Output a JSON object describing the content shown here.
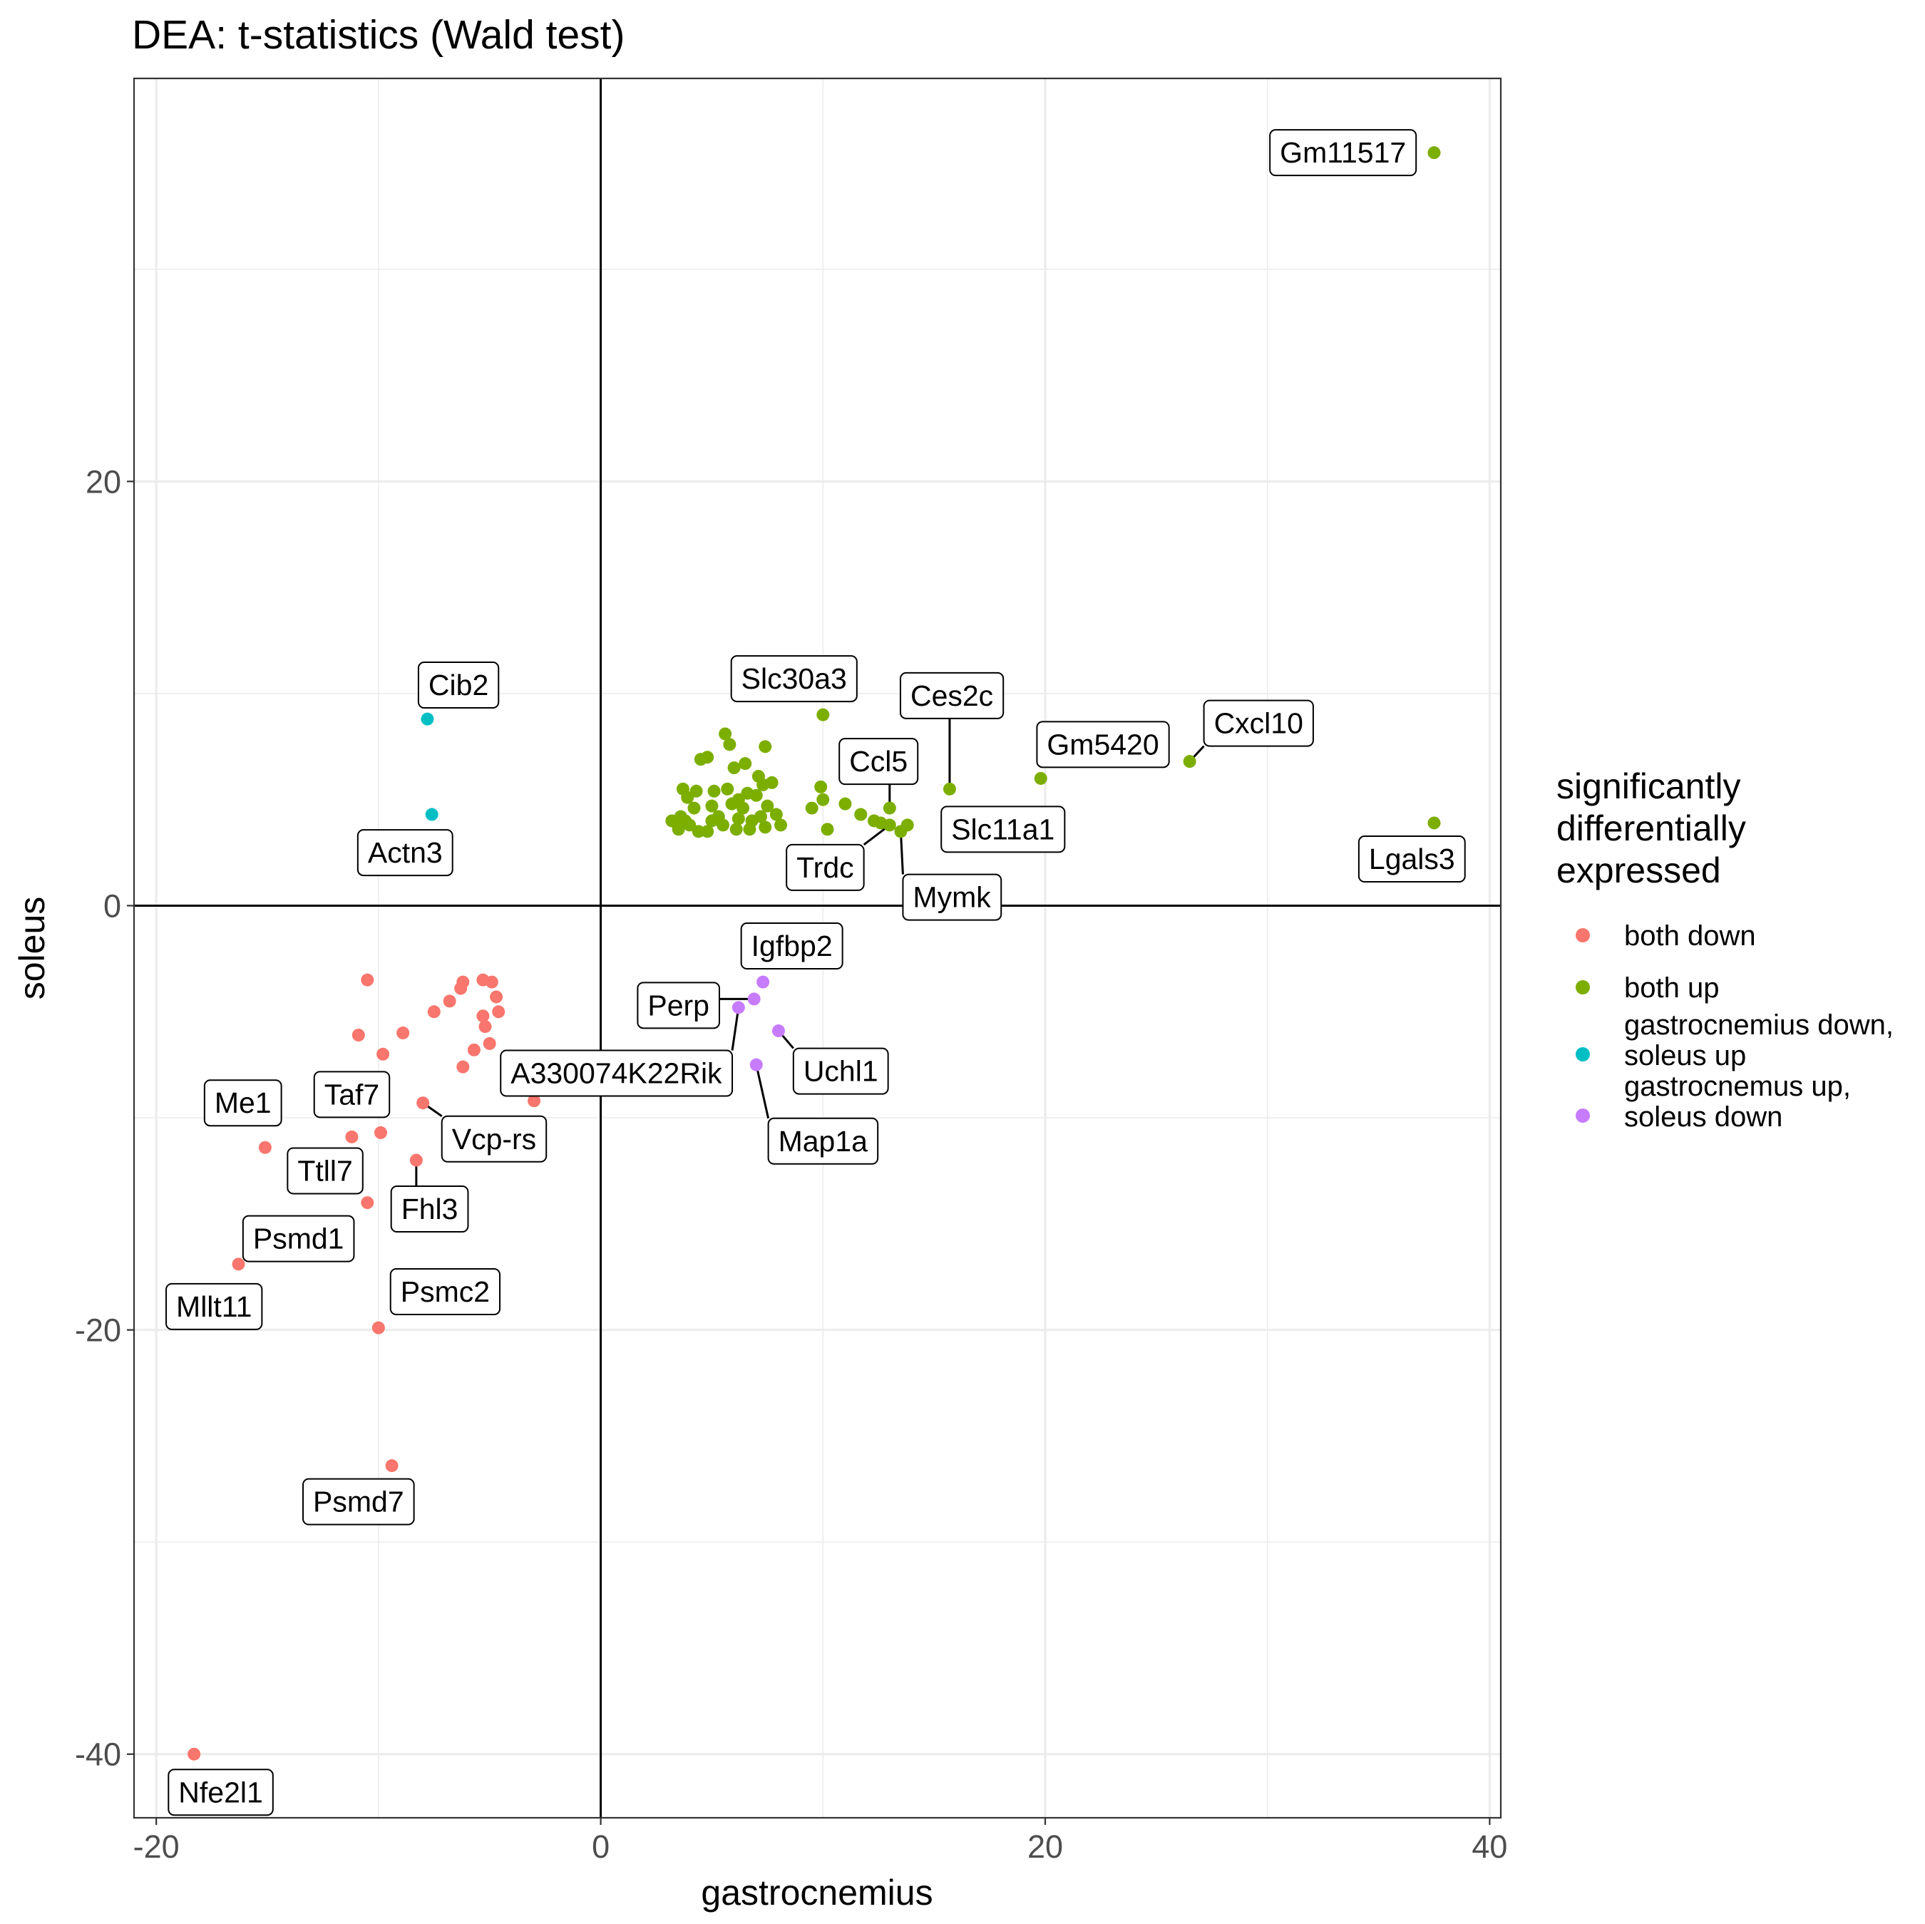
{
  "chart_data": {
    "type": "scatter",
    "title": "DEA: t-statistics (Wald test)",
    "xlabel": "gastrocnemius",
    "ylabel": "soleus",
    "xlim": [
      -21,
      40.5
    ],
    "ylim": [
      -43,
      39
    ],
    "xticks": [
      -20,
      0,
      20,
      40
    ],
    "yticks": [
      -40,
      -20,
      0,
      20
    ],
    "grid": true,
    "reference_lines": {
      "x": 0,
      "y": 0
    },
    "legend": {
      "title_lines": [
        "significantly",
        "differentially",
        "expressed"
      ],
      "placement": "right",
      "entries": [
        {
          "key": "both_down",
          "lines": [
            "both down"
          ]
        },
        {
          "key": "both_up",
          "lines": [
            "both up"
          ]
        },
        {
          "key": "gastro_down_soleus_up",
          "lines": [
            "gastrocnemius down,",
            " soleus up"
          ]
        },
        {
          "key": "gastro_up_soleus_down",
          "lines": [
            "gastrocnemus up,",
            " soleus down"
          ]
        }
      ]
    },
    "colors": {
      "both_down": "#F8766D",
      "both_up": "#7CAE00",
      "gastro_down_soleus_up": "#00BFC4",
      "gastro_up_soleus_down": "#C77CFF"
    },
    "series": [
      {
        "key": "both_down",
        "points": [
          [
            -18.3,
            -40.0
          ],
          [
            -16.3,
            -16.9
          ],
          [
            -15.1,
            -11.4
          ],
          [
            -11.2,
            -10.9
          ],
          [
            -10.9,
            -6.1
          ],
          [
            -10.5,
            -3.5
          ],
          [
            -10.0,
            -19.9
          ],
          [
            -9.9,
            -10.7
          ],
          [
            -9.8,
            -7.0
          ],
          [
            -9.4,
            -26.4
          ],
          [
            -8.9,
            -6.0
          ],
          [
            -8.3,
            -12.0
          ],
          [
            -8.0,
            -9.3
          ],
          [
            -7.5,
            -5.0
          ],
          [
            -6.8,
            -4.5
          ],
          [
            -6.2,
            -3.6
          ],
          [
            -6.3,
            -3.9
          ],
          [
            -6.2,
            -7.6
          ],
          [
            -5.7,
            -6.8
          ],
          [
            -5.3,
            -3.5
          ],
          [
            -5.3,
            -5.2
          ],
          [
            -5.2,
            -5.7
          ],
          [
            -5.0,
            -6.5
          ],
          [
            -4.9,
            -3.6
          ],
          [
            -4.7,
            -4.3
          ],
          [
            -4.6,
            -5.0
          ],
          [
            -3.0,
            -9.2
          ],
          [
            -10.5,
            -14.0
          ]
        ]
      },
      {
        "key": "both_up",
        "points": [
          [
            37.5,
            35.5
          ],
          [
            37.5,
            3.9
          ],
          [
            26.5,
            6.8
          ],
          [
            19.8,
            6.0
          ],
          [
            15.7,
            5.5
          ],
          [
            13.0,
            4.6
          ],
          [
            13.8,
            3.8
          ],
          [
            13.0,
            3.8
          ],
          [
            13.5,
            3.5
          ],
          [
            12.6,
            3.9
          ],
          [
            12.3,
            4.0
          ],
          [
            11.7,
            4.3
          ],
          [
            11.0,
            4.8
          ],
          [
            10.2,
            3.6
          ],
          [
            10.0,
            5.0
          ],
          [
            9.9,
            5.6
          ],
          [
            9.5,
            4.6
          ],
          [
            10.0,
            9.0
          ],
          [
            7.4,
            7.5
          ],
          [
            7.3,
            5.7
          ],
          [
            5.6,
            8.1
          ],
          [
            5.8,
            7.6
          ],
          [
            4.5,
            6.9
          ],
          [
            4.8,
            7.0
          ],
          [
            6.0,
            6.5
          ],
          [
            6.5,
            6.7
          ],
          [
            7.1,
            6.1
          ],
          [
            7.7,
            5.8
          ],
          [
            7.0,
            5.2
          ],
          [
            6.6,
            5.3
          ],
          [
            5.7,
            5.5
          ],
          [
            5.1,
            5.4
          ],
          [
            4.3,
            5.4
          ],
          [
            3.7,
            5.5
          ],
          [
            3.9,
            5.1
          ],
          [
            6.2,
            5.0
          ],
          [
            5.9,
            4.8
          ],
          [
            5.0,
            4.7
          ],
          [
            5.3,
            4.2
          ],
          [
            6.2,
            4.1
          ],
          [
            4.2,
            4.6
          ],
          [
            3.8,
            4.0
          ],
          [
            3.4,
            3.9
          ],
          [
            3.2,
            4.0
          ],
          [
            3.5,
            3.6
          ],
          [
            4.4,
            3.5
          ],
          [
            4.8,
            3.5
          ],
          [
            5.5,
            3.8
          ],
          [
            6.1,
            3.6
          ],
          [
            6.7,
            3.6
          ],
          [
            6.8,
            4.0
          ],
          [
            7.4,
            3.7
          ],
          [
            7.9,
            4.3
          ],
          [
            8.1,
            3.8
          ],
          [
            7.5,
            4.7
          ],
          [
            3.6,
            4.2
          ],
          [
            4.0,
            3.8
          ],
          [
            6.4,
            4.6
          ],
          [
            7.2,
            4.2
          ],
          [
            5.0,
            4.0
          ]
        ]
      },
      {
        "key": "gastro_down_soleus_up",
        "points": [
          [
            -7.8,
            8.8
          ],
          [
            -7.6,
            4.3
          ]
        ]
      },
      {
        "key": "gastro_up_soleus_down",
        "points": [
          [
            7.3,
            -3.6
          ],
          [
            6.9,
            -4.4
          ],
          [
            6.2,
            -4.8
          ],
          [
            8.0,
            -5.9
          ],
          [
            7.0,
            -7.5
          ]
        ]
      }
    ],
    "labels": [
      {
        "text": "Gm11517",
        "point": [
          37.5,
          35.5
        ],
        "label": [
          33.4,
          35.5
        ],
        "segment": false
      },
      {
        "text": "Lgals3",
        "point": [
          37.5,
          3.9
        ],
        "label": [
          36.5,
          2.2
        ],
        "segment": false
      },
      {
        "text": "Cxcl10",
        "point": [
          26.5,
          6.8
        ],
        "label": [
          29.6,
          8.6
        ],
        "segment": true
      },
      {
        "text": "Gm5420",
        "point": [
          19.8,
          6.0
        ],
        "label": [
          22.6,
          7.6
        ],
        "segment": false
      },
      {
        "text": "Ces2c",
        "point": [
          15.7,
          5.5
        ],
        "label": [
          15.8,
          9.9
        ],
        "segment": true
      },
      {
        "text": "Slc30a3",
        "point": [
          10.0,
          9.0
        ],
        "label": [
          8.7,
          10.7
        ],
        "segment": false
      },
      {
        "text": "Ccl5",
        "point": [
          13.0,
          4.6
        ],
        "label": [
          12.5,
          6.8
        ],
        "segment": true
      },
      {
        "text": "Slc11a1",
        "point": [
          13.8,
          3.8
        ],
        "label": [
          18.1,
          3.6
        ],
        "segment": false
      },
      {
        "text": "Trdc",
        "point": [
          13.0,
          3.8
        ],
        "label": [
          10.1,
          1.8
        ],
        "segment": true
      },
      {
        "text": "Mymk",
        "point": [
          13.5,
          3.5
        ],
        "label": [
          15.8,
          0.4
        ],
        "segment": true
      },
      {
        "text": "Cib2",
        "point": [
          -7.8,
          8.8
        ],
        "label": [
          -6.4,
          10.4
        ],
        "segment": false
      },
      {
        "text": "Actn3",
        "point": [
          -7.6,
          4.3
        ],
        "label": [
          -8.8,
          2.5
        ],
        "segment": false
      },
      {
        "text": "Igfbp2",
        "point": [
          7.3,
          -3.6
        ],
        "label": [
          8.6,
          -1.9
        ],
        "segment": false
      },
      {
        "text": "Perp",
        "point": [
          6.9,
          -4.4
        ],
        "label": [
          3.5,
          -4.7
        ],
        "segment": true
      },
      {
        "text": "A330074K22Rik",
        "point": [
          6.2,
          -4.8
        ],
        "label": [
          0.7,
          -7.9
        ],
        "segment": true
      },
      {
        "text": "Uchl1",
        "point": [
          8.0,
          -5.9
        ],
        "label": [
          10.8,
          -7.8
        ],
        "segment": true
      },
      {
        "text": "Map1a",
        "point": [
          7.0,
          -7.5
        ],
        "label": [
          10.0,
          -11.1
        ],
        "segment": true
      },
      {
        "text": "Me1",
        "point": [
          -15.1,
          -11.4
        ],
        "label": [
          -16.1,
          -9.3
        ],
        "segment": false
      },
      {
        "text": "Taf7",
        "point": [
          -11.2,
          -10.9
        ],
        "label": [
          -11.2,
          -8.9
        ],
        "segment": false
      },
      {
        "text": "Vcp-rs",
        "point": [
          -8.0,
          -9.3
        ],
        "label": [
          -4.8,
          -11.0
        ],
        "segment": true
      },
      {
        "text": "Ttll7",
        "point": [
          -10.5,
          -14.0
        ],
        "label": [
          -12.4,
          -12.5
        ],
        "segment": false
      },
      {
        "text": "Fhl3",
        "point": [
          -8.3,
          -12.0
        ],
        "label": [
          -7.7,
          -14.3
        ],
        "segment": true
      },
      {
        "text": "Psmd1",
        "point": [
          -16.3,
          -16.9
        ],
        "label": [
          -13.6,
          -15.7
        ],
        "segment": false
      },
      {
        "text": "Psmc2",
        "point": [
          -10.0,
          -19.9
        ],
        "label": [
          -7.0,
          -18.2
        ],
        "segment": false
      },
      {
        "text": "Mllt11",
        "point": [
          -18.3,
          -40.0
        ],
        "label": [
          -17.4,
          -18.9
        ],
        "segment": false
      },
      {
        "text": "Psmd7",
        "point": [
          -9.4,
          -26.4
        ],
        "label": [
          -10.9,
          -28.1
        ],
        "segment": false
      },
      {
        "text": "Nfe2l1",
        "point": [
          -18.3,
          -40.0
        ],
        "label": [
          -17.1,
          -41.8
        ],
        "segment": false
      }
    ]
  }
}
